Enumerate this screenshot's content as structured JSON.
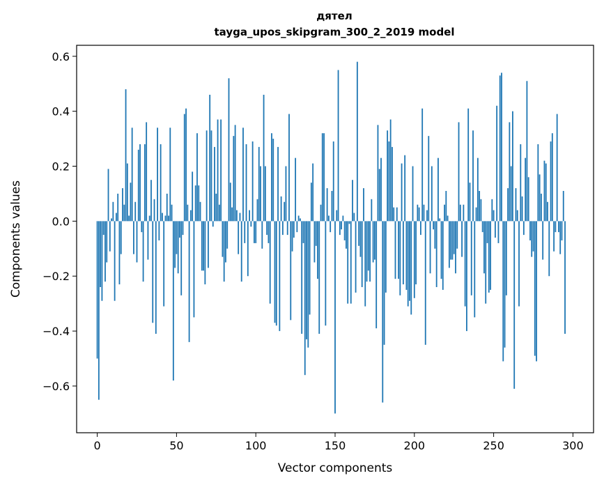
{
  "chart_data": {
    "type": "bar",
    "title": "дятел",
    "subtitle": "tayga_upos_skipgram_300_2_2019 model",
    "xlabel": "Vector components",
    "ylabel": "Components values",
    "xlim": [
      -13,
      313
    ],
    "ylim": [
      -0.77,
      0.64
    ],
    "xticks": [
      0,
      50,
      100,
      150,
      200,
      250,
      300
    ],
    "yticks": [
      -0.6,
      -0.4,
      -0.2,
      0.0,
      0.2,
      0.4,
      0.6
    ],
    "xtick_labels": [
      "0",
      "50",
      "100",
      "150",
      "200",
      "250",
      "300"
    ],
    "ytick_labels": [
      "−0.6",
      "−0.4",
      "−0.2",
      "0.0",
      "0.2",
      "0.4",
      "0.6"
    ],
    "grid": false,
    "bar_color": "#1f77b4",
    "series": [
      {
        "values": [
          -0.5,
          -0.65,
          -0.24,
          -0.29,
          -0.05,
          -0.22,
          -0.15,
          0.19,
          -0.11,
          0.01,
          0.07,
          -0.29,
          0.03,
          0.1,
          -0.23,
          -0.12,
          0.12,
          0.06,
          0.48,
          0.21,
          0.02,
          0.14,
          0.34,
          -0.12,
          0.07,
          -0.15,
          0.26,
          0.28,
          -0.04,
          -0.22,
          0.28,
          0.36,
          -0.14,
          0.02,
          0.15,
          -0.37,
          0.08,
          -0.41,
          0.34,
          -0.07,
          0.28,
          0.03,
          -0.31,
          0.02,
          0.1,
          0.02,
          0.34,
          0.06,
          -0.58,
          -0.17,
          -0.12,
          -0.19,
          -0.06,
          -0.27,
          -0.05,
          0.39,
          0.41,
          0.06,
          -0.44,
          0.04,
          0.18,
          -0.35,
          0.13,
          0.32,
          0.13,
          0.07,
          -0.18,
          -0.18,
          -0.23,
          0.33,
          -0.17,
          0.46,
          0.33,
          -0.02,
          0.27,
          0.1,
          0.37,
          0.06,
          0.37,
          -0.13,
          -0.22,
          -0.15,
          -0.1,
          0.52,
          0.14,
          0.05,
          0.31,
          0.35,
          0.04,
          -0.12,
          0.03,
          -0.22,
          0.34,
          -0.08,
          0.28,
          -0.2,
          0.04,
          -0.02,
          0.29,
          -0.08,
          -0.08,
          0.08,
          0.27,
          0.2,
          -0.1,
          0.46,
          0.2,
          -0.05,
          -0.08,
          -0.3,
          0.32,
          0.3,
          -0.37,
          -0.38,
          0.27,
          -0.4,
          0.09,
          -0.05,
          0.07,
          0.2,
          -0.05,
          0.39,
          -0.36,
          -0.11,
          -0.06,
          0.23,
          -0.04,
          0.02,
          0.01,
          -0.41,
          -0.08,
          -0.56,
          -0.43,
          -0.46,
          -0.34,
          0.14,
          0.21,
          -0.15,
          -0.09,
          -0.21,
          -0.41,
          0.06,
          0.32,
          0.32,
          -0.38,
          0.12,
          0.02,
          -0.04,
          0.11,
          0.29,
          -0.7,
          0.04,
          0.55,
          -0.05,
          -0.03,
          0.02,
          -0.07,
          -0.1,
          -0.3,
          -0.01,
          -0.3,
          0.15,
          0.03,
          -0.26,
          0.58,
          -0.09,
          -0.13,
          -0.24,
          0.12,
          -0.31,
          -0.22,
          -0.18,
          -0.22,
          0.08,
          -0.15,
          -0.14,
          -0.39,
          0.35,
          0.19,
          0.23,
          -0.66,
          -0.45,
          -0.26,
          0.33,
          0.29,
          0.37,
          0.27,
          0.05,
          -0.21,
          0.05,
          -0.21,
          -0.27,
          0.21,
          -0.23,
          0.24,
          -0.25,
          -0.31,
          -0.29,
          -0.34,
          0.2,
          -0.28,
          -0.23,
          0.06,
          0.05,
          -0.05,
          0.41,
          0.06,
          -0.45,
          0.04,
          0.31,
          -0.19,
          0.2,
          -0.03,
          -0.1,
          -0.24,
          0.23,
          0.01,
          -0.21,
          -0.25,
          0.06,
          0.11,
          0.02,
          -0.17,
          -0.14,
          -0.14,
          -0.12,
          -0.19,
          -0.1,
          0.36,
          0.06,
          -0.13,
          0.06,
          -0.31,
          -0.4,
          0.41,
          0.14,
          -0.27,
          0.33,
          -0.35,
          0.05,
          0.23,
          0.11,
          0.08,
          -0.04,
          -0.19,
          -0.3,
          -0.08,
          -0.26,
          -0.25,
          0.08,
          0.04,
          -0.06,
          0.42,
          -0.08,
          0.53,
          0.54,
          -0.51,
          -0.46,
          -0.27,
          0.12,
          0.36,
          0.2,
          0.4,
          -0.61,
          0.12,
          0.04,
          -0.31,
          0.28,
          0.09,
          -0.05,
          0.23,
          0.51,
          0.16,
          -0.07,
          -0.13,
          -0.11,
          -0.49,
          -0.51,
          0.28,
          0.17,
          0.1,
          -0.14,
          0.22,
          0.21,
          0.07,
          -0.2,
          0.29,
          0.32,
          -0.11,
          -0.04,
          0.39,
          -0.04,
          -0.12,
          -0.07,
          0.11,
          -0.41
        ]
      }
    ]
  }
}
